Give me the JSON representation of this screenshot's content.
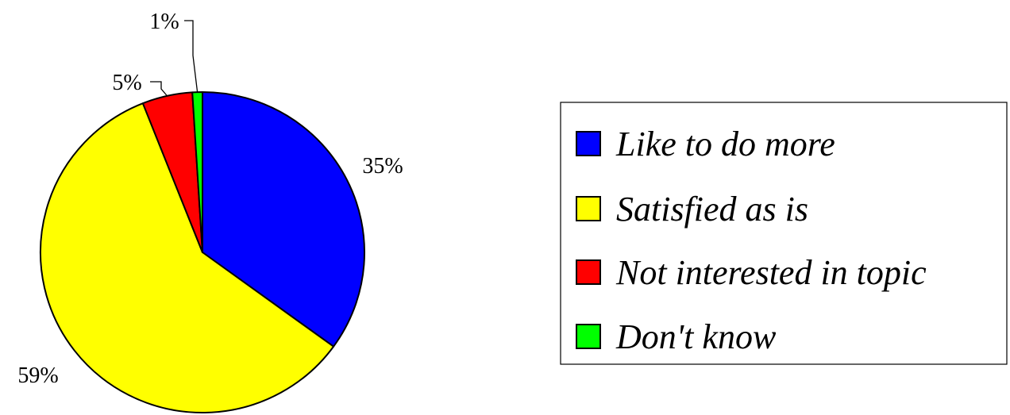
{
  "chart_data": {
    "type": "pie",
    "title": "",
    "slices": [
      {
        "label": "Like to do more",
        "value": 35,
        "value_label": "35%",
        "color": "#0000FF"
      },
      {
        "label": "Satisfied as is",
        "value": 59,
        "value_label": "59%",
        "color": "#FFFF00"
      },
      {
        "label": "Not interested in topic",
        "value": 5,
        "value_label": "5%",
        "color": "#FF0000"
      },
      {
        "label": "Don't know",
        "value": 1,
        "value_label": "1%",
        "color": "#00FF00"
      }
    ],
    "legend_position": "right",
    "start_angle": "top, clockwise"
  }
}
